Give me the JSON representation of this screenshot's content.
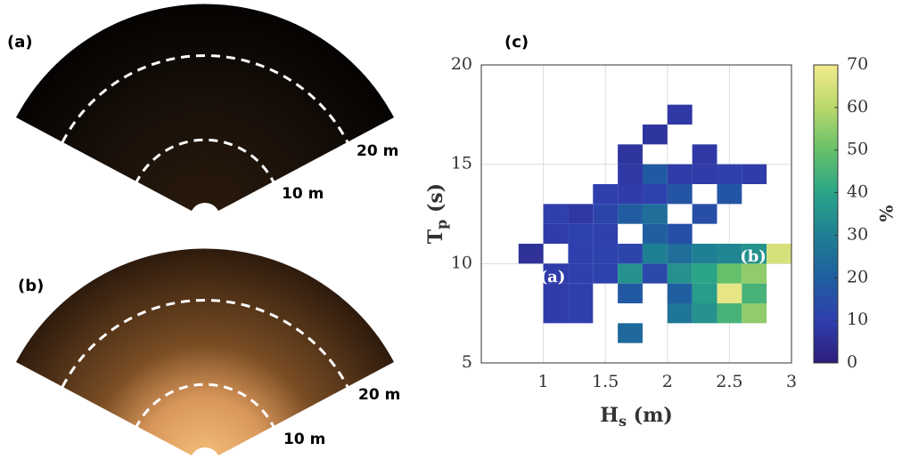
{
  "images": [
    {
      "label": "(a)",
      "range_labels": [
        "20 m",
        "10 m"
      ]
    },
    {
      "label": "(b)",
      "range_labels": [
        "20 m",
        "10 m"
      ]
    }
  ],
  "chart_data": {
    "type": "heatmap",
    "label": "(c)",
    "xlabel": [
      "H",
      "s",
      " (m)"
    ],
    "ylabel": [
      "T",
      "p",
      " (s)"
    ],
    "colorbar_label": "%",
    "x_edges": [
      0.8,
      1.0,
      1.2,
      1.4,
      1.6,
      1.8,
      2.0,
      2.2,
      2.4,
      2.6,
      2.8,
      3.0
    ],
    "y_edges": [
      6,
      7,
      8,
      9,
      10,
      11,
      12,
      13,
      14,
      15,
      16,
      17,
      18
    ],
    "values": [
      [
        null,
        null,
        null,
        null,
        23,
        null,
        null,
        null,
        null,
        null,
        null
      ],
      [
        null,
        9,
        10,
        null,
        null,
        null,
        27,
        35,
        45,
        55,
        null
      ],
      [
        null,
        9,
        10,
        null,
        18,
        null,
        20,
        38,
        68,
        45,
        null
      ],
      [
        null,
        9,
        10,
        11,
        35,
        13,
        35,
        40,
        50,
        55,
        null
      ],
      [
        6,
        null,
        10,
        11,
        12,
        30,
        25,
        30,
        32,
        35,
        65
      ],
      [
        null,
        9,
        11,
        10,
        null,
        20,
        15,
        null,
        null,
        null,
        null
      ],
      [
        null,
        10,
        8,
        12,
        19,
        25,
        null,
        15,
        null,
        null,
        null
      ],
      [
        null,
        null,
        null,
        10,
        9,
        11,
        17,
        null,
        17,
        null,
        null
      ],
      [
        null,
        null,
        null,
        null,
        8,
        18,
        9,
        9,
        10,
        9,
        null
      ],
      [
        null,
        null,
        null,
        null,
        7,
        null,
        null,
        8,
        null,
        null,
        null
      ],
      [
        null,
        null,
        null,
        null,
        null,
        7,
        null,
        null,
        null,
        null,
        null
      ],
      [
        null,
        null,
        null,
        null,
        null,
        null,
        8,
        null,
        null,
        null,
        null
      ]
    ],
    "annotations": [
      "(a)",
      "(b)"
    ],
    "xlim": [
      0.5,
      3
    ],
    "xticks": [
      1,
      1.5,
      2,
      2.5,
      3
    ],
    "ylim": [
      5,
      20
    ],
    "yticks": [
      5,
      10,
      15,
      20
    ],
    "clim": [
      0,
      70
    ],
    "cticks": [
      0,
      10,
      20,
      30,
      40,
      50,
      60,
      70
    ],
    "colormap": [
      "#2d1e7a",
      "#2f3fae",
      "#1f5fa0",
      "#1f7f93",
      "#2aa488",
      "#66c06a",
      "#b9d86a",
      "#f2ea8e"
    ],
    "grid": true
  }
}
